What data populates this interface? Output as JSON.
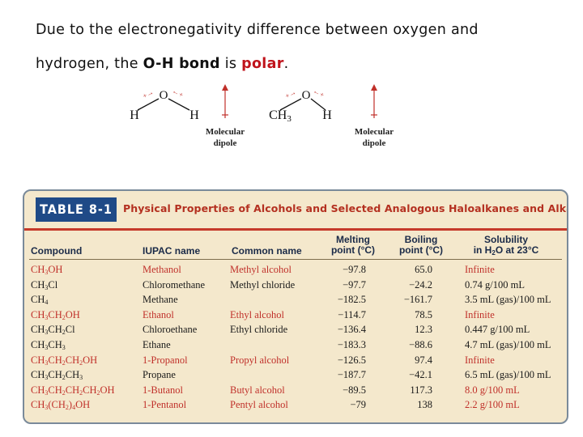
{
  "intro": {
    "line1": "Due to the electronegativity difference between oxygen and",
    "line2_prefix": "hydrogen, the",
    "bond": "O-H bond",
    "line2_mid": "is",
    "polar": "polar",
    "line2_end": "."
  },
  "molecules": {
    "water": {
      "left_atom": "H",
      "center_atom": "O",
      "right_atom": "H",
      "dipole_label": "Molecular",
      "dipole_label2": "dipole"
    },
    "methanol": {
      "left_atom": "CH3",
      "center_atom": "O",
      "right_atom": "H",
      "dipole_label": "Molecular",
      "dipole_label2": "dipole"
    }
  },
  "table": {
    "badge": "TABLE 8-1",
    "caption": "Physical Properties of Alcohols and Selected Analogous Haloalkanes and Alkanes",
    "headers": {
      "compound": "Compound",
      "iupac": "IUPAC name",
      "common": "Common name",
      "melting_1": "Melting",
      "melting_2": "point (°C)",
      "boiling_1": "Boiling",
      "boiling_2": "point (°C)",
      "solubility_1": "Solubility",
      "solubility_2": "in H2O at 23°C"
    },
    "rows": [
      {
        "compound": "CH3OH",
        "iupac": "Methanol",
        "common": "Methyl alcohol",
        "mp": "−97.8",
        "bp": "65.0",
        "solubility": "Infinite",
        "alcohol": true
      },
      {
        "compound": "CH3Cl",
        "iupac": "Chloromethane",
        "common": "Methyl chloride",
        "mp": "−97.7",
        "bp": "−24.2",
        "solubility": "0.74 g/100 mL",
        "alcohol": false
      },
      {
        "compound": "CH4",
        "iupac": "Methane",
        "common": "",
        "mp": "−182.5",
        "bp": "−161.7",
        "solubility": "3.5 mL (gas)/100 mL",
        "alcohol": false
      },
      {
        "compound": "CH3CH2OH",
        "iupac": "Ethanol",
        "common": "Ethyl alcohol",
        "mp": "−114.7",
        "bp": "78.5",
        "solubility": "Infinite",
        "alcohol": true
      },
      {
        "compound": "CH3CH2Cl",
        "iupac": "Chloroethane",
        "common": "Ethyl chloride",
        "mp": "−136.4",
        "bp": "12.3",
        "solubility": "0.447 g/100 mL",
        "alcohol": false
      },
      {
        "compound": "CH3CH3",
        "iupac": "Ethane",
        "common": "",
        "mp": "−183.3",
        "bp": "−88.6",
        "solubility": "4.7 mL (gas)/100 mL",
        "alcohol": false
      },
      {
        "compound": "CH3CH2CH2OH",
        "iupac": "1-Propanol",
        "common": "Propyl alcohol",
        "mp": "−126.5",
        "bp": "97.4",
        "solubility": "Infinite",
        "alcohol": true
      },
      {
        "compound": "CH3CH2CH3",
        "iupac": "Propane",
        "common": "",
        "mp": "−187.7",
        "bp": "−42.1",
        "solubility": "6.5 mL (gas)/100 mL",
        "alcohol": false
      },
      {
        "compound": "CH3CH2CH2CH2OH",
        "iupac": "1-Butanol",
        "common": "Butyl alcohol",
        "mp": "−89.5",
        "bp": "117.3",
        "solubility": "8.0 g/100 mL",
        "alcohol": true
      },
      {
        "compound": "CH3(CH2)4OH",
        "iupac": "1-Pentanol",
        "common": "Pentyl alcohol",
        "mp": "−79",
        "bp": "138",
        "solubility": "2.2 g/100 mL",
        "alcohol": true
      }
    ]
  },
  "colors": {
    "polar": "#c0141c",
    "alcohol_text": "#c0302a",
    "badge": "#1f4a87",
    "table_bg": "#f4e8cc",
    "caption": "#b43020"
  }
}
